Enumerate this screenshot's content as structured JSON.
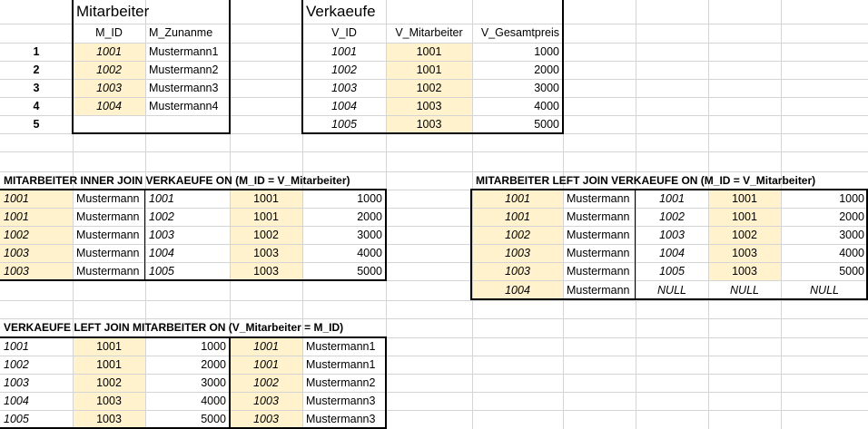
{
  "mitarbeiter": {
    "title": "Mitarbeiter",
    "headers": [
      "M_ID",
      "M_Zunanme"
    ],
    "rows": [
      [
        "1001",
        "Mustermann1"
      ],
      [
        "1002",
        "Mustermann2"
      ],
      [
        "1003",
        "Mustermann3"
      ],
      [
        "1004",
        "Mustermann4"
      ]
    ]
  },
  "verkaeufe": {
    "title": "Verkaeufe",
    "headers": [
      "V_ID",
      "V_Mitarbeiter",
      "V_Gesamtpreis"
    ],
    "rows": [
      [
        "1001",
        "1001",
        "1000"
      ],
      [
        "1002",
        "1001",
        "2000"
      ],
      [
        "1003",
        "1002",
        "3000"
      ],
      [
        "1004",
        "1003",
        "4000"
      ],
      [
        "1005",
        "1003",
        "5000"
      ]
    ]
  },
  "row_numbers": [
    "1",
    "2",
    "3",
    "4",
    "5"
  ],
  "inner_join": {
    "title": "MITARBEITER INNER JOIN VERKAEUFE ON (M_ID = V_Mitarbeiter)",
    "rows": [
      [
        "1001",
        "Mustermann",
        "1001",
        "1001",
        "1000"
      ],
      [
        "1001",
        "Mustermann",
        "1002",
        "1001",
        "2000"
      ],
      [
        "1002",
        "Mustermann",
        "1003",
        "1002",
        "3000"
      ],
      [
        "1003",
        "Mustermann",
        "1004",
        "1003",
        "4000"
      ],
      [
        "1003",
        "Mustermann",
        "1005",
        "1003",
        "5000"
      ]
    ]
  },
  "left_join_ma": {
    "title": "MITARBEITER LEFT JOIN VERKAEUFE ON (M_ID = V_Mitarbeiter)",
    "rows": [
      [
        "1001",
        "Mustermann",
        "1001",
        "1001",
        "1000"
      ],
      [
        "1001",
        "Mustermann",
        "1002",
        "1001",
        "2000"
      ],
      [
        "1002",
        "Mustermann",
        "1003",
        "1002",
        "3000"
      ],
      [
        "1003",
        "Mustermann",
        "1004",
        "1003",
        "4000"
      ],
      [
        "1003",
        "Mustermann",
        "1005",
        "1003",
        "5000"
      ],
      [
        "1004",
        "Mustermann",
        "NULL",
        "NULL",
        "NULL"
      ]
    ]
  },
  "left_join_vk": {
    "title": "VERKAEUFE LEFT JOIN MITARBEITER ON (V_Mitarbeiter = M_ID)",
    "rows": [
      [
        "1001",
        "1001",
        "1000",
        "1001",
        "Mustermann1"
      ],
      [
        "1002",
        "1001",
        "2000",
        "1001",
        "Mustermann1"
      ],
      [
        "1003",
        "1002",
        "3000",
        "1002",
        "Mustermann2"
      ],
      [
        "1004",
        "1003",
        "4000",
        "1003",
        "Mustermann3"
      ],
      [
        "1005",
        "1003",
        "5000",
        "1003",
        "Mustermann3"
      ]
    ]
  },
  "colors": {
    "highlight": "#fff2cc",
    "gridline": "#d4d4d4",
    "border": "#000000"
  }
}
